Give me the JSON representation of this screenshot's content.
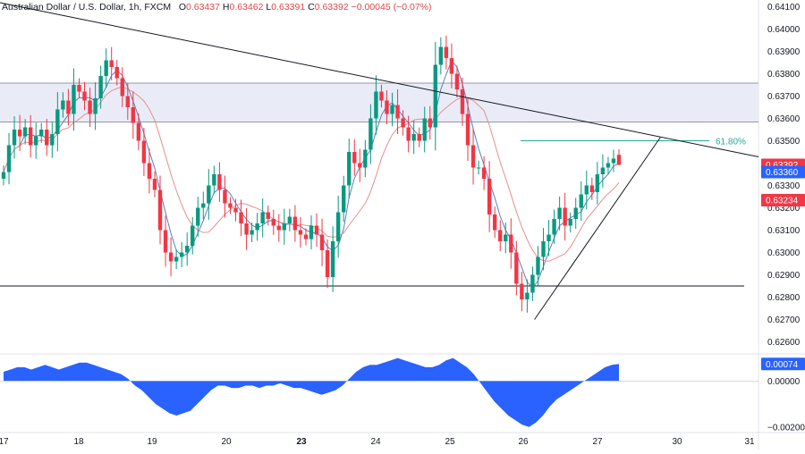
{
  "header": {
    "symbol": "Australian Dollar / U.S. Dollar, 1h, FXCM",
    "o_label": "O",
    "o_value": "0.63437",
    "h_label": "H",
    "h_value": "0.63462",
    "l_label": "L",
    "l_value": "0.63391",
    "c_label": "C",
    "c_value": "0.63392",
    "change": "−0.00045 (−0.07%)"
  },
  "colors": {
    "up": "#089981",
    "down": "#f23645",
    "ma_fast": "#5b7fc4",
    "ma_slow": "#e88e8e",
    "oscillator": "#2962ff",
    "zone": "#e9ecf7",
    "fib": "#22ab94",
    "line": "#131722"
  },
  "price_axis": {
    "ticks": [
      "0.64100",
      "0.64000",
      "0.63900",
      "0.63800",
      "0.63700",
      "0.63600",
      "0.63500",
      "0.63400",
      "0.63300",
      "0.63200",
      "0.63100",
      "0.63000",
      "0.62900",
      "0.62800",
      "0.62700",
      "0.62600"
    ],
    "badges": [
      {
        "text": "0.63392",
        "color": "#f23645"
      },
      {
        "text": "0.63360",
        "color": "#2962ff"
      },
      {
        "text": "0.63234",
        "color": "#f23645"
      }
    ]
  },
  "osc_axis": {
    "ticks": [
      "0.00000",
      "−0.00200"
    ],
    "badge": {
      "text": "0.00074",
      "color": "#2962ff"
    }
  },
  "time_axis": {
    "labels": [
      "17",
      "18",
      "19",
      "20",
      "23",
      "24",
      "25",
      "26",
      "27",
      "30",
      "31"
    ]
  },
  "annotations": {
    "fib_label": "61.80%"
  },
  "chart_data": [
    {
      "type": "candlestick",
      "title": "Australian Dollar / U.S. Dollar, 1h, FXCM",
      "ylim": [
        0.6255,
        0.6413
      ],
      "x": [
        "17",
        "18",
        "19",
        "20",
        "23",
        "24",
        "25",
        "26",
        "27"
      ],
      "close_series": [
        0.6336,
        0.6348,
        0.6355,
        0.6352,
        0.6356,
        0.6348,
        0.6352,
        0.6355,
        0.6348,
        0.6353,
        0.6364,
        0.6368,
        0.6362,
        0.6375,
        0.6372,
        0.6368,
        0.6362,
        0.6369,
        0.6379,
        0.6386,
        0.6383,
        0.6378,
        0.637,
        0.6365,
        0.6358,
        0.635,
        0.634,
        0.6333,
        0.6328,
        0.631,
        0.63,
        0.6296,
        0.6298,
        0.63,
        0.6303,
        0.6312,
        0.632,
        0.6322,
        0.633,
        0.6335,
        0.6328,
        0.6322,
        0.632,
        0.6318,
        0.6313,
        0.6308,
        0.631,
        0.6313,
        0.6318,
        0.6315,
        0.6312,
        0.631,
        0.6313,
        0.6316,
        0.631,
        0.6308,
        0.6306,
        0.6312,
        0.6308,
        0.6301,
        0.6289,
        0.6305,
        0.6318,
        0.633,
        0.6345,
        0.634,
        0.6338,
        0.6346,
        0.636,
        0.6372,
        0.6368,
        0.6362,
        0.6366,
        0.636,
        0.6356,
        0.635,
        0.6353,
        0.635,
        0.636,
        0.6356,
        0.6384,
        0.6392,
        0.6387,
        0.638,
        0.6373,
        0.6362,
        0.6348,
        0.6338,
        0.6338,
        0.6333,
        0.6317,
        0.631,
        0.6305,
        0.6308,
        0.63,
        0.6286,
        0.6279,
        0.6282,
        0.629,
        0.6298,
        0.6305,
        0.6308,
        0.6315,
        0.632,
        0.6312,
        0.6315,
        0.632,
        0.6326,
        0.633,
        0.6327,
        0.6335,
        0.6338,
        0.634,
        0.6342,
        0.6339
      ],
      "last": {
        "open": 0.63437,
        "high": 0.63462,
        "low": 0.63391,
        "close": 0.63392
      },
      "horizontal_levels": [
        0.63758,
        0.63584,
        0.6285
      ],
      "fib_level": {
        "label": "61.80%",
        "price": 0.635
      },
      "trendlines": [
        {
          "name": "descending resistance",
          "from": [
            0,
            0.64118
          ],
          "to": [
            1,
            0.63428
          ]
        },
        {
          "name": "ascending support",
          "from": [
            0.7,
            0.627
          ],
          "to": [
            0.88,
            0.63515
          ]
        }
      ],
      "moving_averages": [
        {
          "value": 0.6336,
          "color": "#2962ff"
        },
        {
          "value": 0.63234,
          "color": "#f23645"
        }
      ]
    },
    {
      "type": "area",
      "ylim": [
        -0.0022,
        0.0011
      ],
      "last_value": 0.00074,
      "values": [
        0.0004,
        0.0005,
        0.0006,
        0.0006,
        0.0005,
        0.0006,
        0.0007,
        0.0006,
        0.0005,
        0.0006,
        0.0007,
        0.0008,
        0.0008,
        0.0007,
        0.0006,
        0.0005,
        0.0004,
        0.0003,
        0.0001,
        -0.0002,
        -0.0004,
        -0.0007,
        -0.001,
        -0.0012,
        -0.0014,
        -0.0015,
        -0.0014,
        -0.0013,
        -0.001,
        -0.0007,
        -0.0004,
        -0.0002,
        -0.0002,
        -0.0003,
        -0.0003,
        -0.0002,
        -0.0002,
        -0.0003,
        -0.0002,
        -0.0002,
        -0.0001,
        -0.0002,
        -0.0003,
        -0.0003,
        -0.0004,
        -0.0005,
        -0.0006,
        -0.0005,
        -0.0004,
        -0.0002,
        0.0001,
        0.0004,
        0.0006,
        0.0007,
        0.0007,
        0.0008,
        0.0009,
        0.001,
        0.0009,
        0.0008,
        0.0007,
        0.0006,
        0.0006,
        0.0007,
        0.0009,
        0.001,
        0.0008,
        0.0006,
        0.0003,
        -0.0001,
        -0.0005,
        -0.0009,
        -0.0012,
        -0.0015,
        -0.0017,
        -0.0019,
        -0.002,
        -0.0018,
        -0.0015,
        -0.0011,
        -0.0008,
        -0.0006,
        -0.0004,
        -0.0002,
        0.0,
        0.0002,
        0.0004,
        0.0006,
        0.0007,
        0.00074
      ]
    }
  ]
}
